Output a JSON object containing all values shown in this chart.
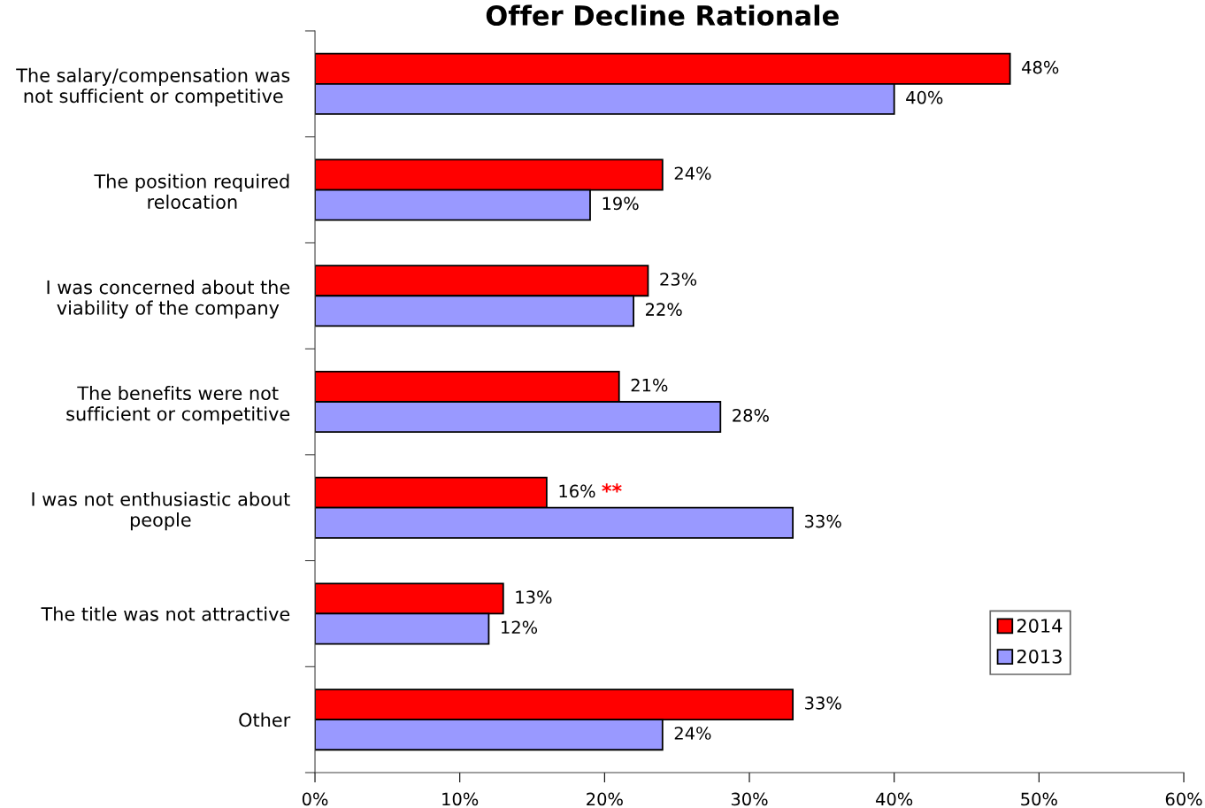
{
  "chart_data": {
    "type": "bar",
    "orientation": "horizontal",
    "title": "Offer Decline Rationale",
    "categories": [
      "The salary/compensation was not sufficient or competitive",
      "The position required relocation",
      "I was concerned about the viability of the company",
      "The benefits were not sufficient or competitive",
      "I was not enthusiastic about people",
      "The title was not attractive",
      "Other"
    ],
    "series": [
      {
        "name": "2014",
        "color": "#ff0000",
        "values": [
          48,
          24,
          23,
          21,
          16,
          13,
          33
        ],
        "value_labels": [
          "48%",
          "24%",
          "23%",
          "21%",
          "16%",
          "13%",
          "33%"
        ]
      },
      {
        "name": "2013",
        "color": "#9999ff",
        "values": [
          40,
          19,
          22,
          28,
          33,
          12,
          24
        ],
        "value_labels": [
          "40%",
          "19%",
          "22%",
          "28%",
          "33%",
          "12%",
          "24%"
        ]
      }
    ],
    "xlim": [
      0,
      60
    ],
    "xticks": [
      {
        "value": 0,
        "label": "0%"
      },
      {
        "value": 10,
        "label": "10%"
      },
      {
        "value": 20,
        "label": "20%"
      },
      {
        "value": 30,
        "label": "30%"
      },
      {
        "value": 40,
        "label": "40%"
      },
      {
        "value": 50,
        "label": "50%"
      },
      {
        "value": 60,
        "label": "60%"
      }
    ],
    "annotations": [
      {
        "text": "**",
        "x": 20.5,
        "y": "I was not enthusiastic about people"
      }
    ],
    "legend": "bottom right",
    "grid": false
  }
}
